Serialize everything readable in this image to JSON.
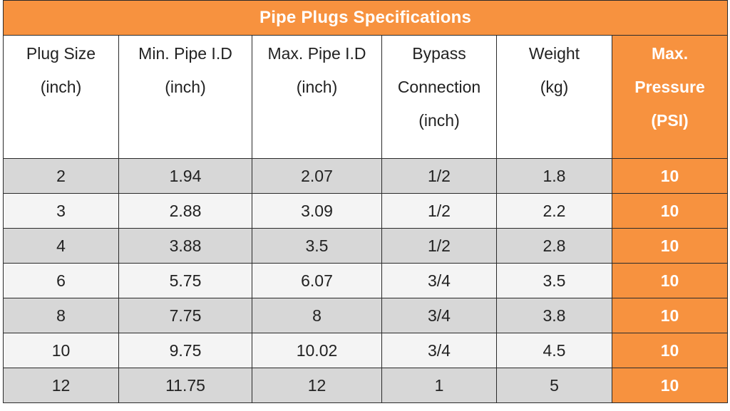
{
  "title": "Pipe Plugs Specifications",
  "headers": [
    [
      "Plug Size",
      "(inch)"
    ],
    [
      "Min. Pipe I.D",
      "(inch)"
    ],
    [
      "Max. Pipe I.D",
      "(inch)"
    ],
    [
      "Bypass",
      "Connection",
      "(inch)"
    ],
    [
      "Weight",
      "(kg)"
    ],
    [
      "Max.",
      "Pressure",
      "(PSI)"
    ]
  ],
  "rows": [
    [
      "2",
      "1.94",
      "2.07",
      "1/2",
      "1.8",
      "10"
    ],
    [
      "3",
      "2.88",
      "3.09",
      "1/2",
      "2.2",
      "10"
    ],
    [
      "4",
      "3.88",
      "3.5",
      "1/2",
      "2.8",
      "10"
    ],
    [
      "6",
      "5.75",
      "6.07",
      "3/4",
      "3.5",
      "10"
    ],
    [
      "8",
      "7.75",
      "8",
      "3/4",
      "3.8",
      "10"
    ],
    [
      "10",
      "9.75",
      "10.02",
      "3/4",
      "4.5",
      "10"
    ],
    [
      "12",
      "11.75",
      "12",
      "1",
      "5",
      "10"
    ]
  ],
  "colors": {
    "accent": "#f7923f",
    "shaded_row": "#d7d7d7",
    "plain_row": "#f4f4f4"
  }
}
